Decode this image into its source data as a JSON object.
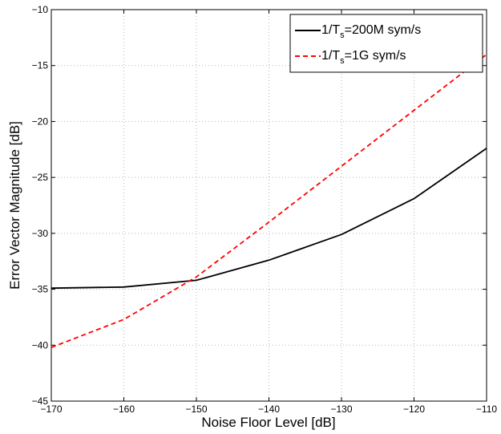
{
  "chart_data": {
    "type": "line",
    "title": "",
    "xlabel": "Noise Floor Level [dB]",
    "ylabel": "Error Vector Magnitude [dB]",
    "xlim": [
      -170,
      -110
    ],
    "ylim": [
      -45,
      -10
    ],
    "xticks": [
      -170,
      -160,
      -150,
      -140,
      -130,
      -120,
      -110
    ],
    "yticks": [
      -45,
      -40,
      -35,
      -30,
      -25,
      -20,
      -15,
      -10
    ],
    "xtick_labels": [
      "−170",
      "−160",
      "−150",
      "−140",
      "−130",
      "−120",
      "−110"
    ],
    "ytick_labels": [
      "−45",
      "−40",
      "−35",
      "−30",
      "−25",
      "−20",
      "−15",
      "−10"
    ],
    "grid": true,
    "legend_position": "top-right",
    "series": [
      {
        "legend_prefix": "1/T",
        "legend_sub": "s",
        "legend_suffix": "=200M sym/s",
        "color": "#000000",
        "dash": "solid",
        "x": [
          -170,
          -160,
          -150,
          -140,
          -130,
          -120,
          -110
        ],
        "y": [
          -34.9,
          -34.8,
          -34.2,
          -32.4,
          -30.1,
          -26.9,
          -22.4
        ]
      },
      {
        "legend_prefix": "1/T",
        "legend_sub": "s",
        "legend_suffix": "=1G sym/s",
        "color": "#ff0000",
        "dash": "dashed",
        "x": [
          -170,
          -160,
          -150,
          -140,
          -130,
          -120,
          -110
        ],
        "y": [
          -40.2,
          -37.7,
          -33.9,
          -29.0,
          -24.0,
          -19.0,
          -14.0
        ]
      }
    ]
  }
}
